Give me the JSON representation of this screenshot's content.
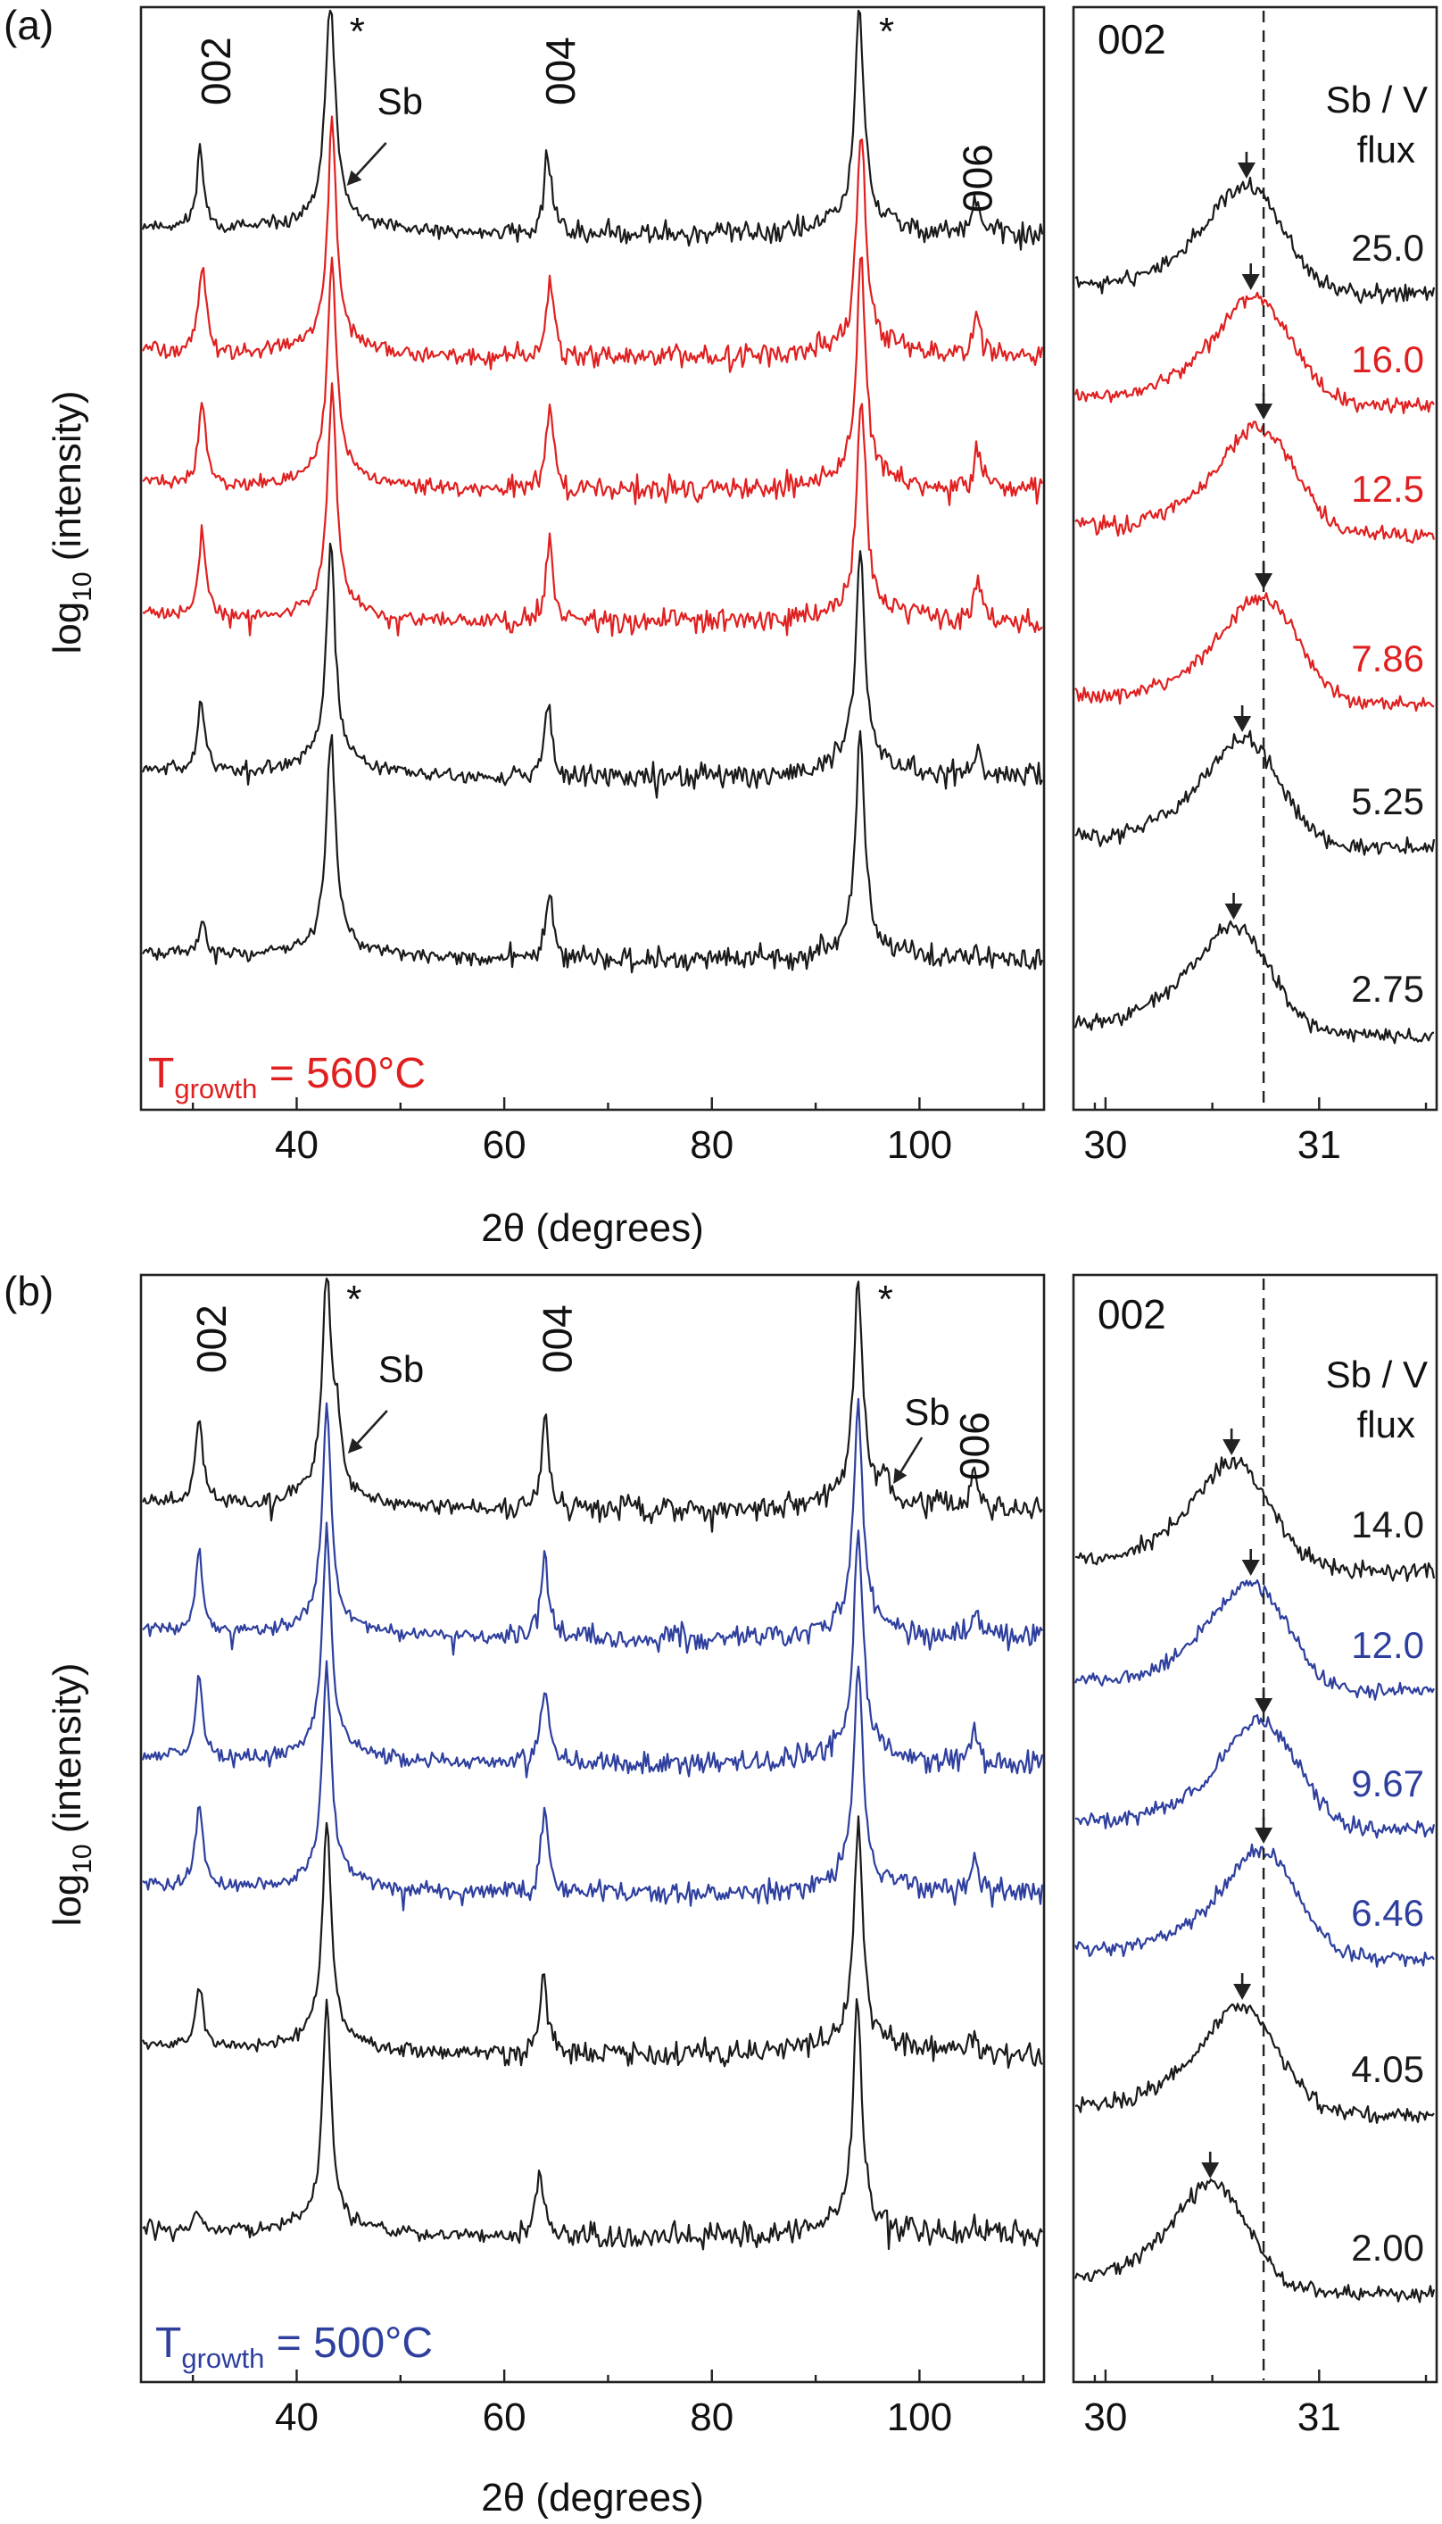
{
  "chart_data": [
    {
      "panel": "(a)",
      "type": "line",
      "subtype": "stacked-xrd-log-traces",
      "xlabel": "2θ (degrees)",
      "ylabel_prefix": "log",
      "ylabel_sub": "10",
      "ylabel_suffix": " (intensity)",
      "xlim": [
        25,
        112
      ],
      "xticks": [
        40,
        60,
        80,
        100
      ],
      "growth_label_prefix": "T",
      "growth_label_sub": "growth",
      "growth_label_suffix": " = 560°C",
      "growth_color": "#e02020",
      "peak_labels": [
        {
          "text": "002",
          "x": 31.0
        },
        {
          "text": "*",
          "x": 43.2
        },
        {
          "text": "004",
          "x": 64.2
        },
        {
          "text": "*",
          "x": 94.2
        },
        {
          "text": "006",
          "x": 105.6
        }
      ],
      "sb_markers": [
        {
          "text": "Sb",
          "x": 43.8
        }
      ],
      "series": [
        {
          "name": "25.0",
          "color": "#1a1a1a",
          "peaks": [
            {
              "x": 30.7,
              "h": 3.4
            },
            {
              "x": 43.2,
              "h": 9.0
            },
            {
              "x": 43.8,
              "h": 1.2
            },
            {
              "x": 64.2,
              "h": 3.6
            },
            {
              "x": 94.2,
              "h": 9.0
            },
            {
              "x": 105.5,
              "h": 1.4
            }
          ]
        },
        {
          "name": "16.0",
          "color": "#e02020",
          "peaks": [
            {
              "x": 30.9,
              "h": 3.6
            },
            {
              "x": 43.4,
              "h": 9.0
            },
            {
              "x": 64.4,
              "h": 3.6
            },
            {
              "x": 94.4,
              "h": 9.0
            },
            {
              "x": 105.6,
              "h": 1.8
            }
          ]
        },
        {
          "name": "12.5",
          "color": "#e02020",
          "peaks": [
            {
              "x": 30.9,
              "h": 3.6
            },
            {
              "x": 43.4,
              "h": 9.0
            },
            {
              "x": 64.4,
              "h": 3.6
            },
            {
              "x": 94.4,
              "h": 9.0
            },
            {
              "x": 105.6,
              "h": 1.8
            }
          ]
        },
        {
          "name": "7.86",
          "color": "#e02020",
          "peaks": [
            {
              "x": 30.9,
              "h": 3.6
            },
            {
              "x": 43.4,
              "h": 9.0
            },
            {
              "x": 64.4,
              "h": 3.6
            },
            {
              "x": 94.4,
              "h": 9.0
            },
            {
              "x": 105.6,
              "h": 1.8
            }
          ]
        },
        {
          "name": "5.25",
          "color": "#1a1a1a",
          "peaks": [
            {
              "x": 30.8,
              "h": 3.0
            },
            {
              "x": 43.3,
              "h": 9.0
            },
            {
              "x": 64.2,
              "h": 3.2
            },
            {
              "x": 94.3,
              "h": 9.0
            },
            {
              "x": 105.6,
              "h": 1.0
            }
          ]
        },
        {
          "name": "2.75",
          "color": "#1a1a1a",
          "peaks": [
            {
              "x": 30.9,
              "h": 1.3
            },
            {
              "x": 43.3,
              "h": 9.0
            },
            {
              "x": 64.4,
              "h": 2.8
            },
            {
              "x": 94.3,
              "h": 9.0
            },
            {
              "x": 105.6,
              "h": 0.4
            }
          ]
        }
      ]
    },
    {
      "panel": "(a) inset",
      "type": "line",
      "subtype": "stacked-002-zoom",
      "peak_label": "002",
      "xlim": [
        29.85,
        31.55
      ],
      "xticks": [
        30,
        31
      ],
      "reference_x": 30.74,
      "legend_title": "Sb / V",
      "legend_subtitle": "flux",
      "series": [
        {
          "name": "25.0",
          "color": "#1a1a1a",
          "peak_x": 30.66,
          "arrow_x": 30.66
        },
        {
          "name": "16.0",
          "color": "#e02020",
          "peak_x": 30.7,
          "arrow_x": 30.68
        },
        {
          "name": "12.5",
          "color": "#e02020",
          "peak_x": 30.72,
          "arrow_x": 30.74
        },
        {
          "name": "7.86",
          "color": "#e02020",
          "peak_x": 30.73,
          "arrow_x": 30.74
        },
        {
          "name": "5.25",
          "color": "#1a1a1a",
          "peak_x": 30.65,
          "arrow_x": 30.64
        },
        {
          "name": "2.75",
          "color": "#1a1a1a",
          "peak_x": 30.6,
          "arrow_x": 30.6
        }
      ]
    },
    {
      "panel": "(b)",
      "type": "line",
      "subtype": "stacked-xrd-log-traces",
      "xlabel": "2θ (degrees)",
      "ylabel_prefix": "log",
      "ylabel_sub": "10",
      "ylabel_suffix": " (intensity)",
      "xlim": [
        25,
        112
      ],
      "xticks": [
        40,
        60,
        80,
        100
      ],
      "growth_label_prefix": "T",
      "growth_label_sub": "growth",
      "growth_label_suffix": " = 500°C",
      "growth_color": "#2e3f9e",
      "peak_labels": [
        {
          "text": "002",
          "x": 30.6
        },
        {
          "text": "*",
          "x": 42.9
        },
        {
          "text": "004",
          "x": 63.9
        },
        {
          "text": "*",
          "x": 94.1
        },
        {
          "text": "006",
          "x": 105.3
        }
      ],
      "sb_markers": [
        {
          "text": "Sb",
          "x": 43.9
        },
        {
          "text": "Sb",
          "x": 96.8
        }
      ],
      "series": [
        {
          "name": "14.0",
          "color": "#1a1a1a",
          "peaks": [
            {
              "x": 30.6,
              "h": 3.6
            },
            {
              "x": 42.9,
              "h": 9.0
            },
            {
              "x": 43.9,
              "h": 2.6
            },
            {
              "x": 63.9,
              "h": 3.8
            },
            {
              "x": 94.1,
              "h": 9.0
            },
            {
              "x": 96.8,
              "h": 0.9
            },
            {
              "x": 105.3,
              "h": 2.0
            }
          ]
        },
        {
          "name": "12.0",
          "color": "#2e3f9e",
          "peaks": [
            {
              "x": 30.6,
              "h": 3.6
            },
            {
              "x": 42.9,
              "h": 9.0
            },
            {
              "x": 63.9,
              "h": 3.6
            },
            {
              "x": 94.1,
              "h": 9.0
            },
            {
              "x": 105.3,
              "h": 1.5
            }
          ]
        },
        {
          "name": "9.67",
          "color": "#2e3f9e",
          "peaks": [
            {
              "x": 30.6,
              "h": 3.6
            },
            {
              "x": 42.9,
              "h": 9.0
            },
            {
              "x": 63.9,
              "h": 3.6
            },
            {
              "x": 94.1,
              "h": 9.0
            },
            {
              "x": 105.3,
              "h": 1.5
            }
          ]
        },
        {
          "name": "6.46",
          "color": "#2e3f9e",
          "peaks": [
            {
              "x": 30.6,
              "h": 3.6
            },
            {
              "x": 42.9,
              "h": 9.0
            },
            {
              "x": 63.9,
              "h": 3.6
            },
            {
              "x": 94.1,
              "h": 9.0
            },
            {
              "x": 105.3,
              "h": 1.5
            }
          ]
        },
        {
          "name": "4.05",
          "color": "#1a1a1a",
          "peaks": [
            {
              "x": 30.6,
              "h": 2.8
            },
            {
              "x": 42.9,
              "h": 9.0
            },
            {
              "x": 63.8,
              "h": 3.2
            },
            {
              "x": 94.1,
              "h": 9.0
            },
            {
              "x": 105.3,
              "h": 0.6
            }
          ]
        },
        {
          "name": "2.00",
          "color": "#1a1a1a",
          "peaks": [
            {
              "x": 30.5,
              "h": 0.9
            },
            {
              "x": 42.9,
              "h": 9.0
            },
            {
              "x": 63.4,
              "h": 2.8
            },
            {
              "x": 94.0,
              "h": 9.0
            },
            {
              "x": 105.3,
              "h": 0.4
            }
          ]
        }
      ]
    },
    {
      "panel": "(b) inset",
      "type": "line",
      "subtype": "stacked-002-zoom",
      "peak_label": "002",
      "xlim": [
        29.85,
        31.55
      ],
      "xticks": [
        30,
        31
      ],
      "reference_x": 30.74,
      "legend_title": "Sb / V",
      "legend_subtitle": "flux",
      "series": [
        {
          "name": "14.0",
          "color": "#1a1a1a",
          "peak_x": 30.6,
          "arrow_x": 30.59
        },
        {
          "name": "12.0",
          "color": "#2e3f9e",
          "peak_x": 30.68,
          "arrow_x": 30.68
        },
        {
          "name": "9.67",
          "color": "#2e3f9e",
          "peak_x": 30.73,
          "arrow_x": 30.74
        },
        {
          "name": "6.46",
          "color": "#2e3f9e",
          "peak_x": 30.73,
          "arrow_x": 30.74
        },
        {
          "name": "4.05",
          "color": "#1a1a1a",
          "peak_x": 30.64,
          "arrow_x": 30.64
        },
        {
          "name": "2.00",
          "color": "#1a1a1a",
          "peak_x": 30.5,
          "arrow_x": 30.49
        }
      ]
    }
  ]
}
